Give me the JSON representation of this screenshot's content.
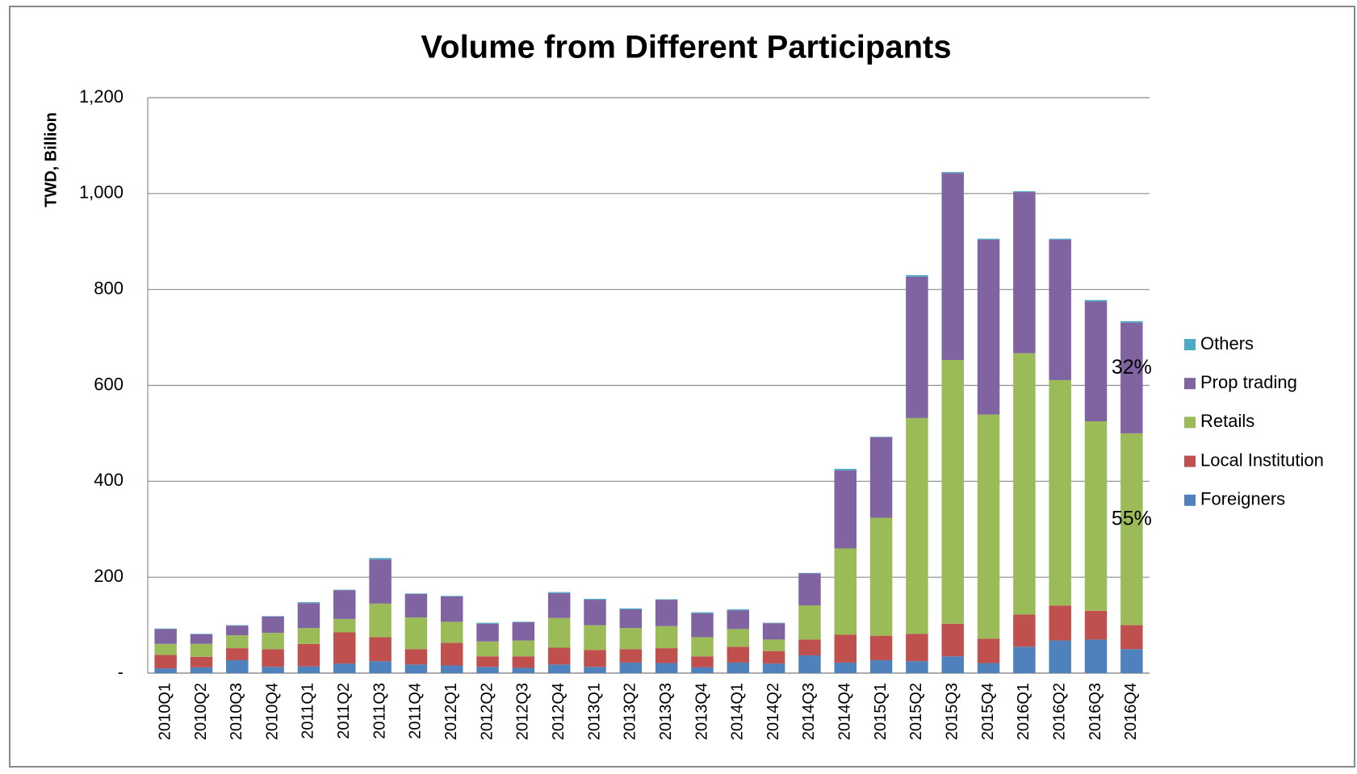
{
  "chart_data": {
    "type": "stacked_bar",
    "title": "Volume from Different Participants",
    "y_label": "TWD, Billion",
    "categories": [
      "2010Q1",
      "2010Q2",
      "2010Q3",
      "2010Q4",
      "2011Q1",
      "2011Q2",
      "2011Q3",
      "2011Q4",
      "2012Q1",
      "2012Q2",
      "2012Q3",
      "2012Q4",
      "2013Q1",
      "2013Q2",
      "2013Q3",
      "2013Q4",
      "2014Q1",
      "2014Q2",
      "2014Q3",
      "2014Q4",
      "2015Q1",
      "2015Q2",
      "2015Q3",
      "2015Q4",
      "2016Q1",
      "2016Q2",
      "2016Q3",
      "2016Q4"
    ],
    "series": [
      {
        "name": "Foreigners",
        "color": "#4f81bd",
        "values": [
          10,
          12,
          27,
          13,
          14,
          20,
          25,
          18,
          16,
          13,
          11,
          18,
          13,
          22,
          21,
          12,
          22,
          20,
          37,
          22,
          27,
          25,
          35,
          21,
          55,
          68,
          70,
          50
        ]
      },
      {
        "name": "Local Institution",
        "color": "#c0504d",
        "values": [
          28,
          22,
          25,
          37,
          47,
          65,
          50,
          32,
          47,
          22,
          24,
          35,
          35,
          28,
          31,
          23,
          33,
          26,
          33,
          58,
          51,
          57,
          68,
          51,
          67,
          73,
          60,
          50
        ]
      },
      {
        "name": "Retails",
        "color": "#9bbb59",
        "values": [
          23,
          27,
          27,
          34,
          33,
          28,
          70,
          66,
          44,
          31,
          33,
          62,
          52,
          44,
          46,
          40,
          37,
          24,
          71,
          180,
          246,
          450,
          550,
          467,
          545,
          470,
          395,
          400
        ]
      },
      {
        "name": "Prop trading",
        "color": "#8064a2",
        "values": [
          31,
          20,
          20,
          34,
          52,
          60,
          92,
          49,
          53,
          37,
          38,
          52,
          53,
          39,
          55,
          50,
          39,
          34,
          67,
          163,
          168,
          295,
          390,
          365,
          336,
          293,
          250,
          231
        ]
      },
      {
        "name": "Others",
        "color": "#4bacc6",
        "values": [
          1,
          1,
          1,
          1,
          2,
          1,
          3,
          1,
          1,
          2,
          1,
          2,
          2,
          2,
          1,
          2,
          2,
          1,
          1,
          3,
          1,
          3,
          2,
          2,
          2,
          2,
          3,
          3
        ]
      }
    ],
    "annotations": [
      "32%",
      "55%"
    ],
    "ylim": [
      0,
      1200
    ],
    "yticks": [
      {
        "value": 0,
        "label": "-"
      },
      200,
      400,
      600,
      800,
      {
        "value": 1000,
        "label": "1,000"
      },
      {
        "value": 1200,
        "label": "1,200"
      }
    ],
    "grid": true,
    "legend": "right"
  }
}
